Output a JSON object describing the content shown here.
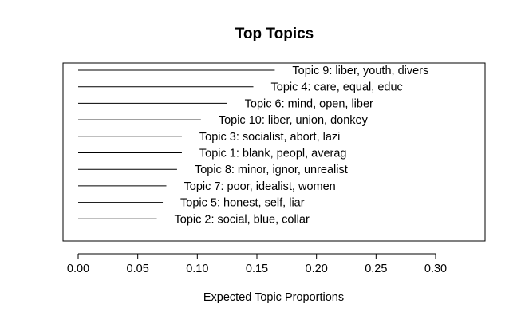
{
  "chart_data": {
    "type": "bar",
    "orientation": "horizontal",
    "title": "Top Topics",
    "xlabel": "Expected Topic Proportions",
    "ylabel": "",
    "xlim": [
      -0.012,
      0.34
    ],
    "x_ticks": [
      0.0,
      0.05,
      0.1,
      0.15,
      0.2,
      0.25,
      0.3
    ],
    "x_tick_labels": [
      "0.00",
      "0.05",
      "0.10",
      "0.15",
      "0.20",
      "0.25",
      "0.30"
    ],
    "grid": false,
    "legend": "none",
    "categories": [
      "Topic 9: liber, youth, divers",
      "Topic 4: care, equal, educ",
      "Topic 6: mind, open, liber",
      "Topic 10: liber, union, donkey",
      "Topic 3: socialist, abort, lazi",
      "Topic 1: blank, peopl, averag",
      "Topic 8: minor, ignor, unrealist",
      "Topic 7: poor, idealist, women",
      "Topic 5: honest, self, liar",
      "Topic 2: social, blue, collar"
    ],
    "values": [
      0.165,
      0.147,
      0.125,
      0.103,
      0.087,
      0.087,
      0.083,
      0.074,
      0.071,
      0.066
    ]
  }
}
